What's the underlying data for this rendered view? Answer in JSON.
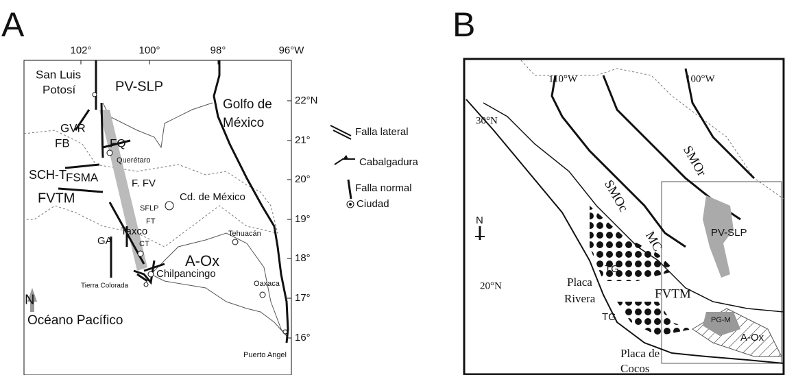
{
  "panel_a": {
    "label": "A",
    "lon_labels": [
      "102°",
      "100°",
      "98°",
      "96°W"
    ],
    "lat_labels": [
      "22°N",
      "21°",
      "20°",
      "19°",
      "18°",
      "17°",
      "16°"
    ],
    "places": [
      "San Luis",
      "Potosí",
      "PV-SLP",
      "Golfo de",
      "México",
      "GVR",
      "FB",
      "FQ",
      "FSMA",
      "Querétaro",
      "SCH-T",
      "F. FV",
      "FVTM",
      "Cd. de México",
      "SFLP",
      "FT",
      "Taxco",
      "GA",
      "CT",
      "Tehuacán",
      "A-Ox",
      "Chilpancingo",
      "Tierra Colorada",
      "Oaxaca",
      "N",
      "Océano Pacífico",
      "Puerto Angel"
    ],
    "legend": [
      "Falla lateral",
      "Cabalgadura",
      "Falla normal",
      "Ciudad"
    ]
  },
  "panel_b": {
    "label": "B",
    "lon_labels": [
      "110°W",
      "100°W"
    ],
    "lat_labels": [
      "30°N",
      "20°N"
    ],
    "regions": [
      "SMOr",
      "SMOc",
      "MC",
      "PV-SLP",
      "TG",
      "TG",
      "FVTM",
      "Placa",
      "Rivera",
      "PG-M",
      "A-Ox",
      "Placa de",
      "Cocos",
      "N"
    ]
  }
}
